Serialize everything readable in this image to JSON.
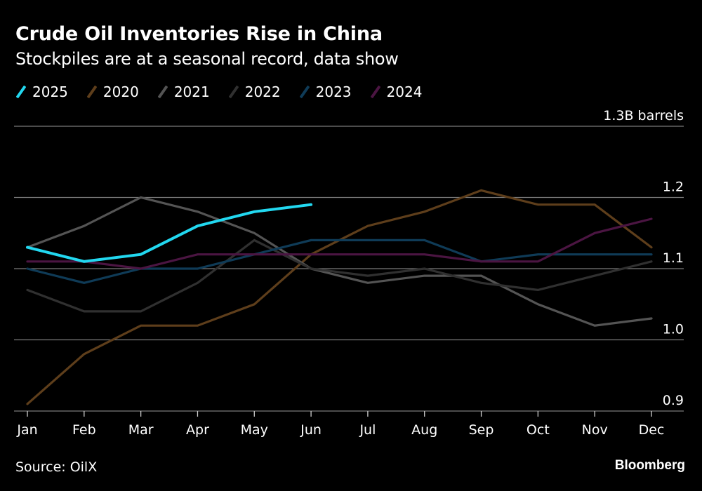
{
  "header": {
    "title": "Crude Oil Inventories Rise in China",
    "subtitle": "Stockpiles are at a seasonal record, data show"
  },
  "footer": {
    "source": "Source: OilX",
    "brand": "Bloomberg"
  },
  "chart_data": {
    "type": "line",
    "title": "Crude Oil Inventories Rise in China",
    "subtitle": "Stockpiles are at a seasonal record, data show",
    "xlabel": "",
    "ylabel": "",
    "unit_label": "1.3B barrels",
    "x": [
      "Jan",
      "Feb",
      "Mar",
      "Apr",
      "May",
      "Jun",
      "Jul",
      "Aug",
      "Sep",
      "Oct",
      "Nov",
      "Dec"
    ],
    "ylim": [
      0.9,
      1.3
    ],
    "yticks": [
      {
        "value": 1.3,
        "label": "1.3B barrels"
      },
      {
        "value": 1.2,
        "label": "1.2"
      },
      {
        "value": 1.1,
        "label": "1.1"
      },
      {
        "value": 1.0,
        "label": "1.0"
      },
      {
        "value": 0.9,
        "label": "0.9"
      }
    ],
    "grid": true,
    "legend_position": "top-left",
    "series": [
      {
        "name": "2020",
        "color": "#5e3e1b",
        "values": [
          0.91,
          0.98,
          1.02,
          1.02,
          1.05,
          1.12,
          1.16,
          1.18,
          1.21,
          1.19,
          1.19,
          1.13
        ]
      },
      {
        "name": "2021",
        "color": "#545454",
        "values": [
          1.13,
          1.16,
          1.2,
          1.18,
          1.15,
          1.1,
          1.08,
          1.09,
          1.09,
          1.05,
          1.02,
          1.03
        ]
      },
      {
        "name": "2022",
        "color": "#303030",
        "values": [
          1.07,
          1.04,
          1.04,
          1.08,
          1.14,
          1.1,
          1.09,
          1.1,
          1.08,
          1.07,
          1.09,
          1.11
        ]
      },
      {
        "name": "2023",
        "color": "#0f3b57",
        "values": [
          1.1,
          1.08,
          1.1,
          1.1,
          1.12,
          1.14,
          1.14,
          1.14,
          1.11,
          1.12,
          1.12,
          1.12
        ]
      },
      {
        "name": "2024",
        "color": "#4b1542",
        "values": [
          1.11,
          1.11,
          1.1,
          1.12,
          1.12,
          1.12,
          1.12,
          1.12,
          1.11,
          1.11,
          1.15,
          1.17
        ]
      },
      {
        "name": "2025",
        "color": "#22d8f0",
        "values": [
          1.13,
          1.11,
          1.12,
          1.16,
          1.18,
          1.19,
          null,
          null,
          null,
          null,
          null,
          null
        ]
      }
    ],
    "legend_order": [
      "2025",
      "2020",
      "2021",
      "2022",
      "2023",
      "2024"
    ]
  }
}
